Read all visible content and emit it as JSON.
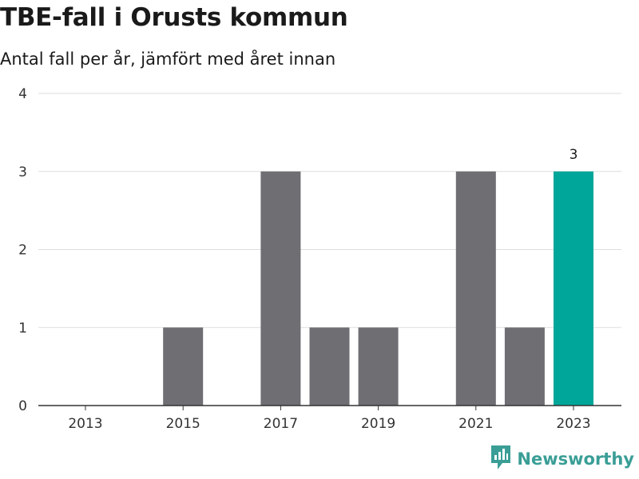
{
  "header": {
    "title": "TBE-fall i Orusts kommun",
    "subtitle": "Antal fall per år, jämfört med året innan"
  },
  "brand": {
    "name": "Newsworthy",
    "icon": "newsworthy-logo-icon"
  },
  "colors": {
    "bar": "#6e6e73",
    "highlight": "#00a699",
    "grid": "#dddddd",
    "axis": "#333333",
    "brand": "#3a9e96"
  },
  "chart_data": {
    "type": "bar",
    "title": "TBE-fall i Orusts kommun",
    "subtitle": "Antal fall per år, jämfört med året innan",
    "xlabel": "",
    "ylabel": "",
    "categories": [
      "2013",
      "2014",
      "2015",
      "2016",
      "2017",
      "2018",
      "2019",
      "2020",
      "2021",
      "2022",
      "2023"
    ],
    "values": [
      0,
      0,
      1,
      0,
      3,
      1,
      1,
      0,
      3,
      1,
      3
    ],
    "highlight_category": "2023",
    "data_labels": [
      {
        "category": "2023",
        "text": "3"
      }
    ],
    "x_ticks": [
      "2013",
      "2015",
      "2017",
      "2019",
      "2021",
      "2023"
    ],
    "y_ticks": [
      0,
      1,
      2,
      3,
      4
    ],
    "ylim": [
      0,
      4
    ],
    "grid": true,
    "legend": "none"
  }
}
